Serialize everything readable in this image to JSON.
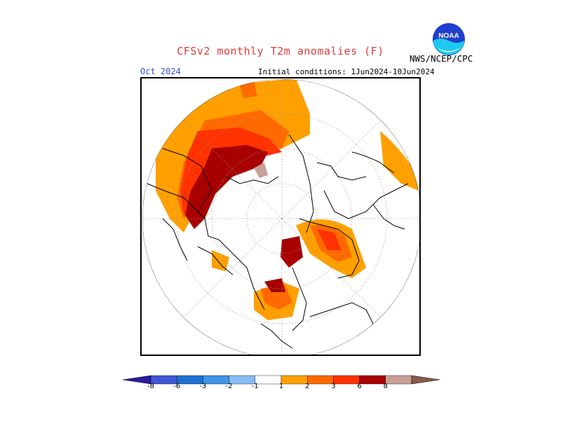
{
  "title": "CFSv2 monthly T2m anomalies (F)",
  "agency": "NWS/NCEP/CPC",
  "logo_text": "NOAA",
  "valid_month": "Oct 2024",
  "initial_conditions": "Initial conditions: 1Jun2024-10Jun2024",
  "projection": "north polar stereographic",
  "legend": {
    "ticks": [
      "-8",
      "-6",
      "-3",
      "-2",
      "-1",
      "1",
      "2",
      "3",
      "6",
      "8"
    ],
    "bins": [
      {
        "color": "#2a1aa0",
        "range": "< -8"
      },
      {
        "color": "#3f56d6",
        "range": "-8 to -6"
      },
      {
        "color": "#1f6fd1",
        "range": "-6 to -3"
      },
      {
        "color": "#3f95e6",
        "range": "-3 to -2"
      },
      {
        "color": "#86bdf4",
        "range": "-2 to -1"
      },
      {
        "color": "#ffffff",
        "range": "-1 to 1"
      },
      {
        "color": "#ffa000",
        "range": "1 to 2"
      },
      {
        "color": "#ff6a00",
        "range": "2 to 3"
      },
      {
        "color": "#ff3200",
        "range": "3 to 6"
      },
      {
        "color": "#a80000",
        "range": "6 to 8"
      },
      {
        "color": "#c8a098",
        "range": "> 8"
      },
      {
        "color": "#8a5a4a",
        "range": "> 8 (max)"
      }
    ]
  },
  "colors": {
    "title": "#e03a3a",
    "valid_month": "#3c4fd6",
    "coast": "#000000",
    "graticule": "#9a9a9a"
  }
}
